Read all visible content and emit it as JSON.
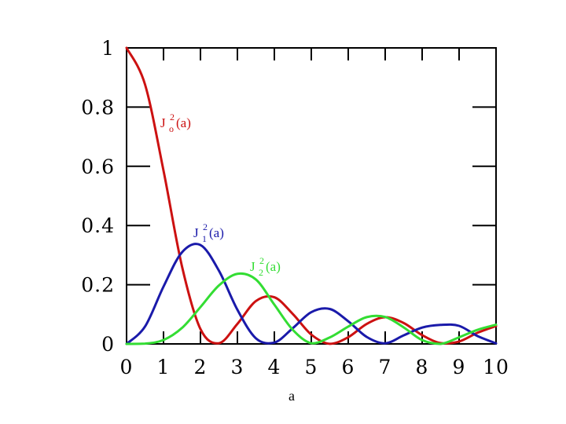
{
  "chart_data": {
    "type": "line",
    "title": "",
    "xlabel": "a",
    "ylabel": "",
    "xlim": [
      0,
      10
    ],
    "ylim": [
      0,
      1
    ],
    "x_ticks": [
      "0",
      "1",
      "2",
      "3",
      "4",
      "5",
      "6",
      "7",
      "8",
      "9",
      "10"
    ],
    "y_ticks": [
      "0",
      "0.2",
      "0.4",
      "0.6",
      "0.8",
      "1"
    ],
    "grid": false,
    "series": [
      {
        "name": "Jo2(a)",
        "label_base": "J",
        "label_sup": "2",
        "label_sub": "o",
        "label_arg": "(a)",
        "color": "#cc1111",
        "x": [
          0,
          0.5,
          1,
          1.5,
          2,
          2.5,
          3,
          3.5,
          4,
          4.5,
          5,
          5.5,
          6,
          6.5,
          7,
          7.5,
          8,
          8.5,
          9,
          9.5,
          10
        ],
        "y": [
          1.0,
          0.8763,
          0.5855,
          0.262,
          0.0502,
          0.0023,
          0.0676,
          0.1447,
          0.1577,
          0.101,
          0.0315,
          0.0004,
          0.0226,
          0.0676,
          0.0901,
          0.0707,
          0.0297,
          0.0029,
          0.0081,
          0.0378,
          0.0605
        ]
      },
      {
        "name": "J12(a)",
        "label_base": "J",
        "label_sup": "2",
        "label_sub": "1",
        "label_arg": "(a)",
        "color": "#1a1aaa",
        "x": [
          0,
          0.5,
          1,
          1.5,
          2,
          2.5,
          3,
          3.5,
          4,
          4.5,
          5,
          5.5,
          6,
          6.5,
          7,
          7.5,
          8,
          8.5,
          9,
          9.5,
          10
        ],
        "y": [
          0,
          0.0587,
          0.1936,
          0.3095,
          0.3341,
          0.2473,
          0.1153,
          0.019,
          0.0044,
          0.0533,
          0.1073,
          0.118,
          0.0765,
          0.0235,
          0.0022,
          0.0288,
          0.0551,
          0.0642,
          0.061,
          0.0265,
          0.0019
        ]
      },
      {
        "name": "J22(a)",
        "label_base": "J",
        "label_sup": "2",
        "label_sub": "2",
        "label_arg": "(a)",
        "color": "#33dd33",
        "x": [
          0,
          0.5,
          1,
          1.5,
          2,
          2.5,
          3,
          3.5,
          4,
          4.5,
          5,
          5.5,
          6,
          6.5,
          7,
          7.5,
          8,
          8.5,
          9,
          9.5,
          10
        ],
        "y": [
          0,
          0.0009,
          0.0132,
          0.0539,
          0.1245,
          0.1975,
          0.2368,
          0.2176,
          0.1326,
          0.0474,
          0.0022,
          0.0219,
          0.0586,
          0.0905,
          0.0909,
          0.0558,
          0.0128,
          0.0001,
          0.0223,
          0.0476,
          0.0648
        ]
      }
    ]
  }
}
